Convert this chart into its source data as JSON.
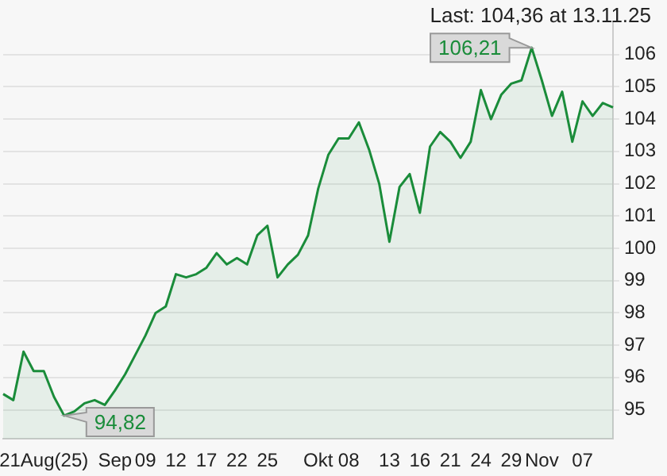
{
  "chart_data": {
    "type": "area",
    "categories": [
      null,
      null,
      null,
      null,
      "21Aug(25)",
      null,
      null,
      null,
      null,
      null,
      null,
      "Sep",
      null,
      null,
      "09",
      null,
      null,
      "12",
      null,
      null,
      "17",
      null,
      null,
      "22",
      null,
      null,
      "25",
      null,
      null,
      null,
      null,
      "Okt",
      null,
      null,
      "08",
      null,
      null,
      null,
      "13",
      null,
      null,
      "16",
      null,
      null,
      "21",
      null,
      null,
      "24",
      null,
      null,
      "29",
      null,
      null,
      "Nov",
      null,
      null,
      null,
      "07",
      null,
      null,
      null
    ],
    "series": [
      {
        "color": "#1a8c3a",
        "values": [
          95.49,
          95.3,
          96.8,
          96.2,
          96.2,
          95.4,
          94.82,
          94.95,
          95.2,
          95.3,
          95.15,
          95.6,
          96.1,
          96.7,
          97.3,
          98.0,
          98.2,
          99.2,
          99.1,
          99.2,
          99.4,
          99.85,
          99.5,
          99.7,
          99.5,
          100.4,
          100.7,
          99.1,
          99.5,
          99.8,
          100.4,
          101.85,
          102.9,
          103.4,
          103.4,
          103.9,
          103.06,
          102.0,
          100.2,
          101.9,
          102.3,
          101.1,
          103.15,
          103.6,
          103.3,
          102.8,
          103.3,
          104.9,
          104.0,
          104.75,
          105.1,
          105.2,
          106.21,
          105.2,
          104.1,
          104.85,
          103.3,
          104.55,
          104.1,
          104.5,
          104.36
        ]
      }
    ],
    "ylim": [
      94.1,
      107
    ],
    "yticks": [
      95,
      96,
      97,
      98,
      99,
      100,
      101,
      102,
      103,
      104,
      105,
      106
    ],
    "grid": "y",
    "legend": false,
    "annotations": [
      "Last: 104,36 at 13.11.25",
      "106,21",
      "94,82"
    ]
  }
}
